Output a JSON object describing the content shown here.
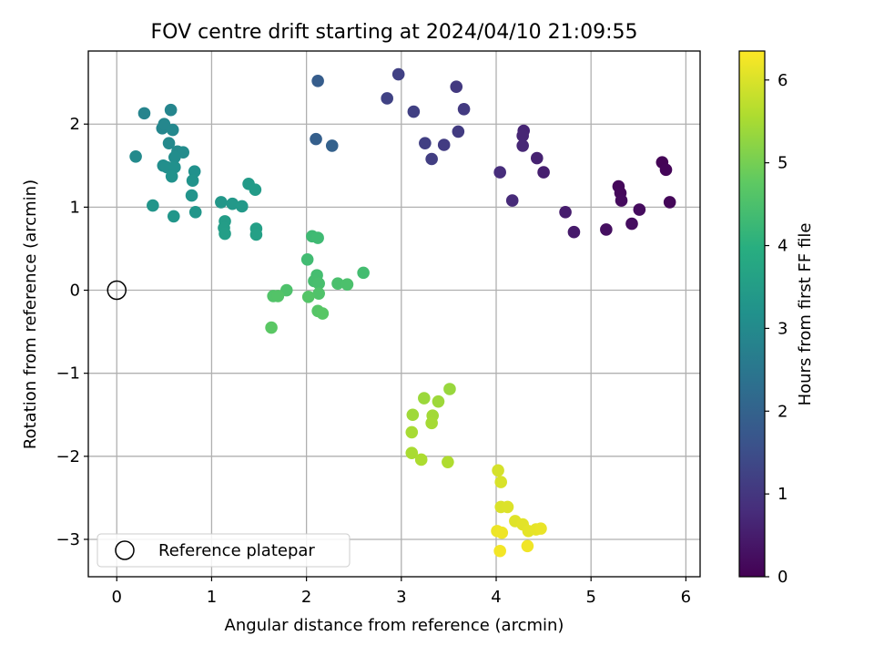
{
  "chart_data": {
    "type": "scatter",
    "title": "FOV centre drift starting at 2024/04/10 21:09:55",
    "xlabel": "Angular distance from reference (arcmin)",
    "ylabel": "Rotation from reference (arcmin)",
    "xlim": [
      -0.3,
      6.15
    ],
    "ylim": [
      -3.45,
      2.88
    ],
    "xticks": [
      0,
      1,
      2,
      3,
      4,
      5,
      6
    ],
    "yticks": [
      -3,
      -2,
      -1,
      0,
      1,
      2
    ],
    "xtick_labels": [
      "0",
      "1",
      "2",
      "3",
      "4",
      "5",
      "6"
    ],
    "ytick_labels": [
      "−3",
      "−2",
      "−1",
      "0",
      "1",
      "2"
    ],
    "grid": true,
    "colorbar": {
      "label": "Hours from first FF file",
      "range": [
        0,
        6.35
      ],
      "ticks": [
        0,
        1,
        2,
        3,
        4,
        5,
        6
      ],
      "tick_labels": [
        "0",
        "1",
        "2",
        "3",
        "4",
        "5",
        "6"
      ],
      "colormap": "viridis"
    },
    "legend": {
      "position": "lower-left",
      "entries": [
        "Reference platepar"
      ]
    },
    "reference_point": {
      "x": 0,
      "y": 0
    },
    "points": [
      {
        "x": 5.75,
        "y": 1.54,
        "h": 0.05
      },
      {
        "x": 5.79,
        "y": 1.45,
        "h": 0.08
      },
      {
        "x": 5.83,
        "y": 1.06,
        "h": 0.1
      },
      {
        "x": 5.29,
        "y": 1.25,
        "h": 0.12
      },
      {
        "x": 5.31,
        "y": 1.17,
        "h": 0.15
      },
      {
        "x": 5.32,
        "y": 1.08,
        "h": 0.18
      },
      {
        "x": 5.51,
        "y": 0.97,
        "h": 0.2
      },
      {
        "x": 5.43,
        "y": 0.8,
        "h": 0.22
      },
      {
        "x": 5.16,
        "y": 0.73,
        "h": 0.25
      },
      {
        "x": 4.82,
        "y": 0.7,
        "h": 0.45
      },
      {
        "x": 4.73,
        "y": 0.94,
        "h": 0.5
      },
      {
        "x": 4.5,
        "y": 1.42,
        "h": 0.55
      },
      {
        "x": 4.43,
        "y": 1.59,
        "h": 0.6
      },
      {
        "x": 4.29,
        "y": 1.92,
        "h": 0.65
      },
      {
        "x": 4.28,
        "y": 1.86,
        "h": 0.68
      },
      {
        "x": 4.28,
        "y": 1.74,
        "h": 0.7
      },
      {
        "x": 4.17,
        "y": 1.08,
        "h": 0.75
      },
      {
        "x": 4.04,
        "y": 1.42,
        "h": 0.8
      },
      {
        "x": 3.58,
        "y": 2.45,
        "h": 1.05
      },
      {
        "x": 3.66,
        "y": 2.18,
        "h": 1.08
      },
      {
        "x": 3.6,
        "y": 1.91,
        "h": 1.1
      },
      {
        "x": 3.45,
        "y": 1.75,
        "h": 1.12
      },
      {
        "x": 3.32,
        "y": 1.58,
        "h": 1.15
      },
      {
        "x": 3.25,
        "y": 1.77,
        "h": 1.18
      },
      {
        "x": 3.13,
        "y": 2.15,
        "h": 1.2
      },
      {
        "x": 2.97,
        "y": 2.6,
        "h": 1.22
      },
      {
        "x": 2.85,
        "y": 2.31,
        "h": 1.25
      },
      {
        "x": 2.12,
        "y": 2.52,
        "h": 1.85
      },
      {
        "x": 2.1,
        "y": 1.82,
        "h": 1.9
      },
      {
        "x": 2.27,
        "y": 1.74,
        "h": 1.95
      },
      {
        "x": 0.29,
        "y": 2.13,
        "h": 2.85
      },
      {
        "x": 0.57,
        "y": 2.17,
        "h": 2.88
      },
      {
        "x": 0.48,
        "y": 1.95,
        "h": 2.9
      },
      {
        "x": 0.5,
        "y": 2.0,
        "h": 2.92
      },
      {
        "x": 0.59,
        "y": 1.93,
        "h": 2.95
      },
      {
        "x": 0.55,
        "y": 1.77,
        "h": 2.98
      },
      {
        "x": 0.2,
        "y": 1.61,
        "h": 3.0
      },
      {
        "x": 0.64,
        "y": 1.67,
        "h": 3.02
      },
      {
        "x": 0.7,
        "y": 1.66,
        "h": 3.05
      },
      {
        "x": 0.61,
        "y": 1.6,
        "h": 3.08
      },
      {
        "x": 0.49,
        "y": 1.5,
        "h": 3.1
      },
      {
        "x": 0.53,
        "y": 1.48,
        "h": 3.12
      },
      {
        "x": 0.61,
        "y": 1.48,
        "h": 3.15
      },
      {
        "x": 0.82,
        "y": 1.43,
        "h": 3.18
      },
      {
        "x": 0.58,
        "y": 1.37,
        "h": 3.2
      },
      {
        "x": 0.8,
        "y": 1.32,
        "h": 3.22
      },
      {
        "x": 0.79,
        "y": 1.14,
        "h": 3.25
      },
      {
        "x": 0.38,
        "y": 1.02,
        "h": 3.28
      },
      {
        "x": 0.6,
        "y": 0.89,
        "h": 3.3
      },
      {
        "x": 0.83,
        "y": 0.94,
        "h": 3.32
      },
      {
        "x": 1.1,
        "y": 1.06,
        "h": 3.35
      },
      {
        "x": 1.22,
        "y": 1.04,
        "h": 3.38
      },
      {
        "x": 1.32,
        "y": 1.01,
        "h": 3.4
      },
      {
        "x": 1.39,
        "y": 1.28,
        "h": 3.42
      },
      {
        "x": 1.46,
        "y": 1.21,
        "h": 3.45
      },
      {
        "x": 1.14,
        "y": 0.83,
        "h": 3.48
      },
      {
        "x": 1.13,
        "y": 0.75,
        "h": 3.5
      },
      {
        "x": 1.14,
        "y": 0.68,
        "h": 3.52
      },
      {
        "x": 1.47,
        "y": 0.74,
        "h": 3.55
      },
      {
        "x": 1.47,
        "y": 0.67,
        "h": 3.58
      },
      {
        "x": 2.06,
        "y": 0.65,
        "h": 4.3
      },
      {
        "x": 2.12,
        "y": 0.63,
        "h": 4.32
      },
      {
        "x": 2.01,
        "y": 0.37,
        "h": 4.35
      },
      {
        "x": 2.6,
        "y": 0.21,
        "h": 4.38
      },
      {
        "x": 2.11,
        "y": 0.18,
        "h": 4.4
      },
      {
        "x": 2.08,
        "y": 0.11,
        "h": 4.42
      },
      {
        "x": 2.13,
        "y": 0.08,
        "h": 4.45
      },
      {
        "x": 2.33,
        "y": 0.08,
        "h": 4.48
      },
      {
        "x": 2.43,
        "y": 0.07,
        "h": 4.5
      },
      {
        "x": 1.79,
        "y": 0.0,
        "h": 4.52
      },
      {
        "x": 2.13,
        "y": -0.04,
        "h": 4.55
      },
      {
        "x": 1.65,
        "y": -0.07,
        "h": 4.58
      },
      {
        "x": 1.7,
        "y": -0.07,
        "h": 4.6
      },
      {
        "x": 2.02,
        "y": -0.08,
        "h": 4.62
      },
      {
        "x": 2.12,
        "y": -0.25,
        "h": 4.65
      },
      {
        "x": 2.17,
        "y": -0.28,
        "h": 4.68
      },
      {
        "x": 1.63,
        "y": -0.45,
        "h": 4.7
      },
      {
        "x": 3.51,
        "y": -1.19,
        "h": 5.35
      },
      {
        "x": 3.24,
        "y": -1.3,
        "h": 5.38
      },
      {
        "x": 3.39,
        "y": -1.34,
        "h": 5.4
      },
      {
        "x": 3.12,
        "y": -1.5,
        "h": 5.42
      },
      {
        "x": 3.33,
        "y": -1.51,
        "h": 5.45
      },
      {
        "x": 3.32,
        "y": -1.6,
        "h": 5.48
      },
      {
        "x": 3.11,
        "y": -1.71,
        "h": 5.5
      },
      {
        "x": 3.11,
        "y": -1.96,
        "h": 5.52
      },
      {
        "x": 3.21,
        "y": -2.04,
        "h": 5.55
      },
      {
        "x": 3.49,
        "y": -2.07,
        "h": 5.58
      },
      {
        "x": 4.02,
        "y": -2.17,
        "h": 5.95
      },
      {
        "x": 4.05,
        "y": -2.31,
        "h": 5.98
      },
      {
        "x": 4.05,
        "y": -2.61,
        "h": 6.0
      },
      {
        "x": 4.12,
        "y": -2.61,
        "h": 6.02
      },
      {
        "x": 4.2,
        "y": -2.78,
        "h": 6.05
      },
      {
        "x": 4.28,
        "y": -2.82,
        "h": 6.08
      },
      {
        "x": 4.34,
        "y": -2.9,
        "h": 6.1
      },
      {
        "x": 4.42,
        "y": -2.88,
        "h": 6.12
      },
      {
        "x": 4.47,
        "y": -2.87,
        "h": 6.15
      },
      {
        "x": 4.01,
        "y": -2.9,
        "h": 6.18
      },
      {
        "x": 4.06,
        "y": -2.92,
        "h": 6.2
      },
      {
        "x": 4.33,
        "y": -3.08,
        "h": 6.22
      },
      {
        "x": 4.04,
        "y": -3.14,
        "h": 6.25
      }
    ]
  }
}
